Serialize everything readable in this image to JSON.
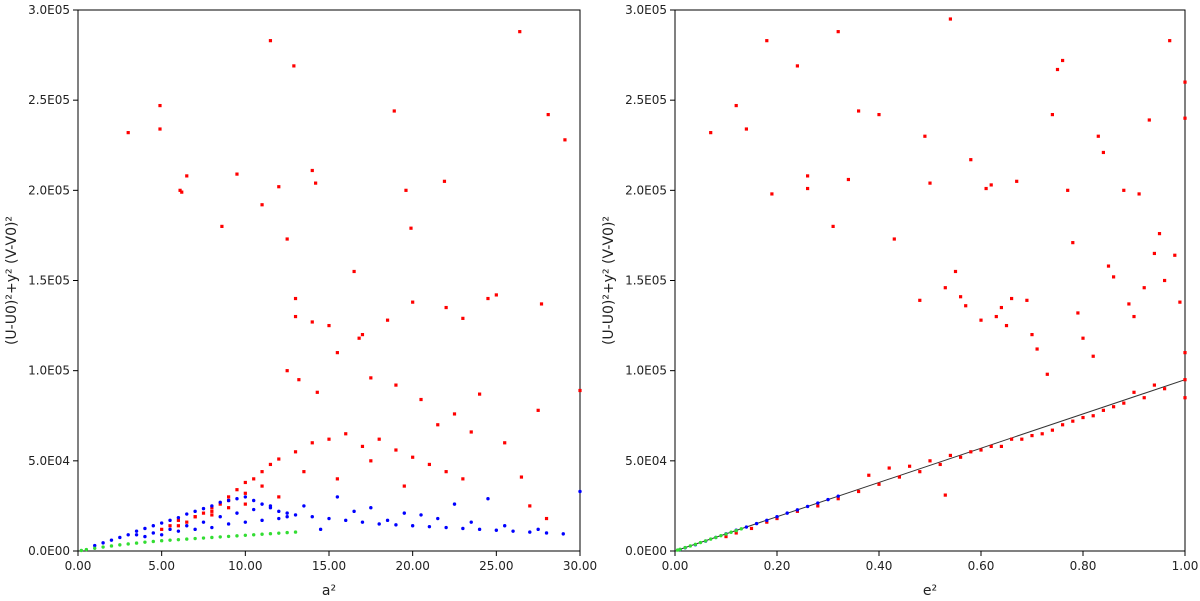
{
  "chart_data": [
    {
      "type": "scatter",
      "xlabel": "a²",
      "ylabel": "(U-U0)²+y² (V-V0)²",
      "xlim": [
        0,
        30
      ],
      "ylim": [
        0,
        300000
      ],
      "x_ticks": [
        "0.00",
        "5.00",
        "10.00",
        "15.00",
        "20.00",
        "25.00",
        "30.00"
      ],
      "x_tick_values": [
        0,
        5,
        10,
        15,
        20,
        25,
        30
      ],
      "y_ticks": [
        "0.0E00",
        "5.0E04",
        "1.0E05",
        "1.5E05",
        "2.0E05",
        "2.5E05",
        "3.0E05"
      ],
      "y_tick_values": [
        0,
        50000,
        100000,
        150000,
        200000,
        250000,
        300000
      ],
      "grid": false,
      "legend": "none",
      "series": [
        {
          "color": "#ff0000",
          "marker": "square",
          "x": [
            3.0,
            4.9,
            4.9,
            6.1,
            6.2,
            6.5,
            8.6,
            9.5,
            11.0,
            11.5,
            12.0,
            12.5,
            12.9,
            13.0,
            14.0,
            14.2,
            18.9,
            19.6,
            19.9,
            21.9,
            26.4,
            28.1,
            29.1,
            30.0,
            13.0,
            14.0,
            15.0,
            16.5,
            17.0,
            18.5,
            20.0,
            22.0,
            23.0,
            24.5,
            25.0,
            27.5,
            27.7,
            12.5,
            13.2,
            14.3,
            15.5,
            16.8,
            17.5,
            19.0,
            20.5,
            21.5,
            22.5,
            23.5,
            24.0,
            25.5,
            26.5,
            27.0,
            28.0,
            8.0,
            8.5,
            9.0,
            9.5,
            10.0,
            10.5,
            11.0,
            11.5,
            12.0,
            13.0,
            14.0,
            15.0,
            16.0,
            17.0,
            18.0,
            19.0,
            20.0,
            21.0,
            22.0,
            23.0,
            6.0,
            6.5,
            7.0,
            7.5,
            8.0,
            9.0,
            10.0,
            11.0,
            12.0,
            13.5,
            15.5,
            17.5,
            19.5,
            5.0,
            5.5,
            6.0,
            7.0,
            8.0,
            9.0,
            10.0
          ],
          "y": [
            232000,
            247000,
            234000,
            200000,
            199000,
            208000,
            180000,
            209000,
            192000,
            283000,
            202000,
            173000,
            269000,
            130000,
            211000,
            204000,
            244000,
            200000,
            179000,
            205000,
            288000,
            242000,
            228000,
            89000,
            140000,
            127000,
            125000,
            155000,
            120000,
            128000,
            138000,
            135000,
            129000,
            140000,
            142000,
            78000,
            137000,
            100000,
            95000,
            88000,
            110000,
            118000,
            96000,
            92000,
            84000,
            70000,
            76000,
            66000,
            87000,
            60000,
            41000,
            25000,
            18000,
            22000,
            26000,
            30000,
            34000,
            38000,
            40000,
            44000,
            48000,
            51000,
            55000,
            60000,
            62000,
            65000,
            58000,
            62000,
            56000,
            52000,
            48000,
            44000,
            40000,
            14000,
            16000,
            19000,
            21000,
            24000,
            28000,
            32000,
            36000,
            30000,
            44000,
            40000,
            50000,
            36000,
            12000,
            14000,
            17000,
            19000,
            20000,
            24000,
            26000
          ]
        },
        {
          "color": "#0000ff",
          "marker": "dot",
          "x": [
            1.0,
            1.5,
            2.0,
            2.5,
            3.0,
            3.5,
            4.0,
            4.5,
            5.0,
            5.5,
            6.0,
            6.5,
            7.0,
            7.5,
            8.0,
            8.5,
            9.0,
            9.5,
            10.0,
            10.5,
            11.0,
            11.5,
            12.0,
            12.5,
            13.0,
            14.0,
            15.0,
            16.0,
            17.0,
            18.0,
            19.0,
            20.0,
            21.0,
            22.0,
            23.0,
            24.0,
            25.0,
            26.0,
            27.0,
            28.0,
            29.0,
            30.0,
            4.0,
            5.0,
            6.0,
            7.0,
            8.0,
            9.0,
            10.0,
            11.0,
            12.0,
            13.5,
            15.5,
            17.5,
            19.5,
            21.5,
            23.5,
            25.5,
            27.5,
            3.5,
            4.5,
            5.5,
            6.5,
            7.5,
            8.5,
            9.5,
            10.5,
            11.5,
            12.5,
            14.5,
            16.5,
            18.5,
            20.5,
            22.5,
            24.5
          ],
          "y": [
            3000,
            4500,
            6000,
            7500,
            9000,
            11000,
            12500,
            14000,
            15500,
            17000,
            18500,
            20500,
            22000,
            23500,
            25000,
            27000,
            28000,
            29000,
            30000,
            28000,
            26000,
            24000,
            22000,
            21000,
            20000,
            19000,
            18000,
            17000,
            16000,
            15000,
            14500,
            14000,
            13500,
            13000,
            12500,
            12000,
            11500,
            11000,
            10500,
            10000,
            9500,
            33000,
            8000,
            9000,
            11000,
            12000,
            13000,
            15000,
            16000,
            17000,
            18000,
            25000,
            30000,
            24000,
            21000,
            18000,
            16000,
            14000,
            12000,
            9000,
            10000,
            12000,
            14000,
            16000,
            19000,
            21000,
            23000,
            25000,
            19000,
            12000,
            22000,
            17000,
            20000,
            26000,
            29000
          ]
        },
        {
          "color": "#33dd33",
          "marker": "dot",
          "x": [
            0.2,
            0.5,
            1.0,
            1.5,
            2.0,
            2.5,
            3.0,
            3.5,
            4.0,
            4.5,
            5.0,
            5.5,
            6.0,
            6.5,
            7.0,
            7.5,
            8.0,
            8.5,
            9.0,
            9.5,
            10.0,
            10.5,
            11.0,
            11.5,
            12.0,
            12.5,
            13.0
          ],
          "y": [
            300,
            800,
            1500,
            2200,
            2800,
            3400,
            3900,
            4400,
            4900,
            5300,
            5700,
            6000,
            6300,
            6600,
            6900,
            7200,
            7500,
            7800,
            8100,
            8400,
            8700,
            9000,
            9300,
            9600,
            9900,
            10200,
            10500
          ]
        }
      ]
    },
    {
      "type": "scatter",
      "xlabel": "e²",
      "ylabel": "(U-U0)²+y² (V-V0)²",
      "xlim": [
        0,
        1
      ],
      "ylim": [
        0,
        300000
      ],
      "x_ticks": [
        "0.00",
        "0.20",
        "0.40",
        "0.60",
        "0.80",
        "1.00"
      ],
      "x_tick_values": [
        0,
        0.2,
        0.4,
        0.6,
        0.8,
        1.0
      ],
      "y_ticks": [
        "0.0E00",
        "5.0E04",
        "1.0E05",
        "1.5E05",
        "2.0E05",
        "2.5E05",
        "3.0E05"
      ],
      "y_tick_values": [
        0,
        50000,
        100000,
        150000,
        200000,
        250000,
        300000
      ],
      "grid": false,
      "legend": "none",
      "fit_line": {
        "x": [
          0,
          1
        ],
        "y": [
          0,
          95000
        ],
        "color": "#333333"
      },
      "series": [
        {
          "color": "#ff0000",
          "marker": "square",
          "x": [
            0.07,
            0.12,
            0.14,
            0.18,
            0.19,
            0.24,
            0.26,
            0.26,
            0.31,
            0.32,
            0.34,
            0.36,
            0.4,
            0.43,
            0.48,
            0.49,
            0.5,
            0.53,
            0.54,
            0.55,
            0.58,
            0.61,
            0.62,
            0.67,
            0.69,
            0.74,
            0.75,
            0.76,
            0.77,
            0.78,
            0.83,
            0.84,
            0.88,
            0.91,
            0.93,
            0.97,
            1.0,
            1.0,
            1.0,
            1.0,
            1.0,
            0.56,
            0.57,
            0.6,
            0.63,
            0.64,
            0.65,
            0.66,
            0.7,
            0.71,
            0.73,
            0.79,
            0.8,
            0.82,
            0.85,
            0.86,
            0.89,
            0.9,
            0.92,
            0.94,
            0.95,
            0.96,
            0.98,
            0.99,
            0.1,
            0.12,
            0.15,
            0.18,
            0.2,
            0.24,
            0.28,
            0.32,
            0.36,
            0.4,
            0.44,
            0.48,
            0.52,
            0.56,
            0.6,
            0.64,
            0.68,
            0.72,
            0.76,
            0.8,
            0.84,
            0.88,
            0.92,
            0.96,
            0.38,
            0.42,
            0.46,
            0.5,
            0.54,
            0.58,
            0.62,
            0.66,
            0.7,
            0.74,
            0.78,
            0.82,
            0.86,
            0.9,
            0.94,
            0.53
          ],
          "y": [
            232000,
            247000,
            234000,
            283000,
            198000,
            269000,
            208000,
            201000,
            180000,
            288000,
            206000,
            244000,
            242000,
            173000,
            139000,
            230000,
            204000,
            146000,
            295000,
            155000,
            217000,
            201000,
            203000,
            205000,
            139000,
            242000,
            267000,
            272000,
            200000,
            171000,
            230000,
            221000,
            200000,
            198000,
            239000,
            283000,
            260000,
            240000,
            110000,
            95000,
            85000,
            141000,
            136000,
            128000,
            130000,
            135000,
            125000,
            140000,
            120000,
            112000,
            98000,
            132000,
            118000,
            108000,
            158000,
            152000,
            137000,
            130000,
            146000,
            165000,
            176000,
            150000,
            164000,
            138000,
            8000,
            10000,
            12500,
            16000,
            18000,
            22000,
            25000,
            29000,
            33000,
            37000,
            41000,
            44000,
            48000,
            52000,
            56000,
            58000,
            62000,
            65000,
            70000,
            74000,
            78000,
            82000,
            85000,
            90000,
            42000,
            46000,
            47000,
            50000,
            53000,
            55000,
            58000,
            62000,
            64000,
            67000,
            72000,
            75000,
            80000,
            88000,
            92000,
            31000
          ]
        },
        {
          "color": "#0000ff",
          "marker": "dot",
          "x": [
            0.01,
            0.02,
            0.04,
            0.06,
            0.08,
            0.1,
            0.12,
            0.14,
            0.16,
            0.18,
            0.2,
            0.22,
            0.24,
            0.26,
            0.28,
            0.3,
            0.32
          ],
          "y": [
            800,
            1800,
            3500,
            5500,
            7500,
            9500,
            11500,
            13300,
            15200,
            17000,
            19000,
            21000,
            22800,
            24700,
            26600,
            28500,
            30400
          ]
        },
        {
          "color": "#33dd33",
          "marker": "dot",
          "x": [
            0.005,
            0.01,
            0.02,
            0.03,
            0.04,
            0.05,
            0.06,
            0.07,
            0.08,
            0.09,
            0.1,
            0.11,
            0.12,
            0.13
          ],
          "y": [
            500,
            900,
            1900,
            2800,
            3700,
            4700,
            5600,
            6600,
            7500,
            8500,
            9400,
            10400,
            11300,
            12300
          ]
        }
      ]
    }
  ]
}
